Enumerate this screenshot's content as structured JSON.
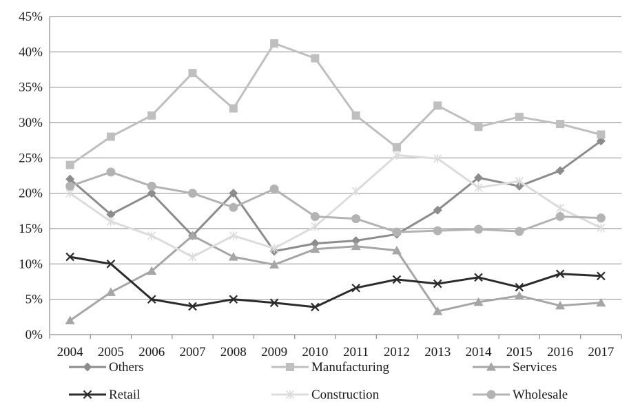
{
  "chart_data": {
    "type": "line",
    "title": "",
    "xlabel": "",
    "ylabel": "",
    "x": [
      "2004",
      "2005",
      "2006",
      "2007",
      "2008",
      "2009",
      "2010",
      "2011",
      "2012",
      "2013",
      "2014",
      "2015",
      "2016",
      "2017"
    ],
    "ylim": [
      0,
      45
    ],
    "yticks": [
      0,
      5,
      10,
      15,
      20,
      25,
      30,
      35,
      40,
      45
    ],
    "ytick_labels": [
      "0%",
      "5%",
      "10%",
      "15%",
      "20%",
      "25%",
      "30%",
      "35%",
      "40%",
      "45%"
    ],
    "grid": "horizontal",
    "legend_position": "bottom",
    "series": [
      {
        "name": "Others",
        "color": "#8c8c8c",
        "marker": "diamond",
        "values": [
          22,
          17,
          20,
          14,
          20,
          11.8,
          12.9,
          13.3,
          14.2,
          17.6,
          22.2,
          21,
          23.2,
          27.4
        ]
      },
      {
        "name": "Manufacturing",
        "color": "#bfbfbf",
        "marker": "square",
        "values": [
          24,
          28,
          31,
          37,
          32,
          41.2,
          39.1,
          31,
          26.5,
          32.4,
          29.4,
          30.8,
          29.8,
          28.3
        ]
      },
      {
        "name": "Services",
        "color": "#a6a6a6",
        "marker": "triangle",
        "values": [
          2,
          6,
          9,
          14,
          11,
          9.9,
          12.1,
          12.5,
          11.9,
          3.3,
          4.6,
          5.5,
          4.1,
          4.5
        ]
      },
      {
        "name": "Retail",
        "color": "#2b2b2b",
        "marker": "x",
        "values": [
          11,
          10,
          5,
          4,
          5,
          4.5,
          3.9,
          6.6,
          7.8,
          7.2,
          8.1,
          6.7,
          8.6,
          8.3
        ]
      },
      {
        "name": "Construction",
        "color": "#dcdcdc",
        "marker": "asterisk",
        "values": [
          20,
          16,
          14,
          11,
          14,
          12.2,
          15.3,
          20.3,
          25.4,
          24.9,
          20.8,
          21.7,
          17.9,
          15.1
        ]
      },
      {
        "name": "Wholesale",
        "color": "#b3b3b3",
        "marker": "circle",
        "values": [
          21,
          23,
          21,
          20,
          18,
          20.6,
          16.7,
          16.4,
          14.5,
          14.7,
          14.9,
          14.6,
          16.7,
          16.5
        ]
      }
    ]
  }
}
